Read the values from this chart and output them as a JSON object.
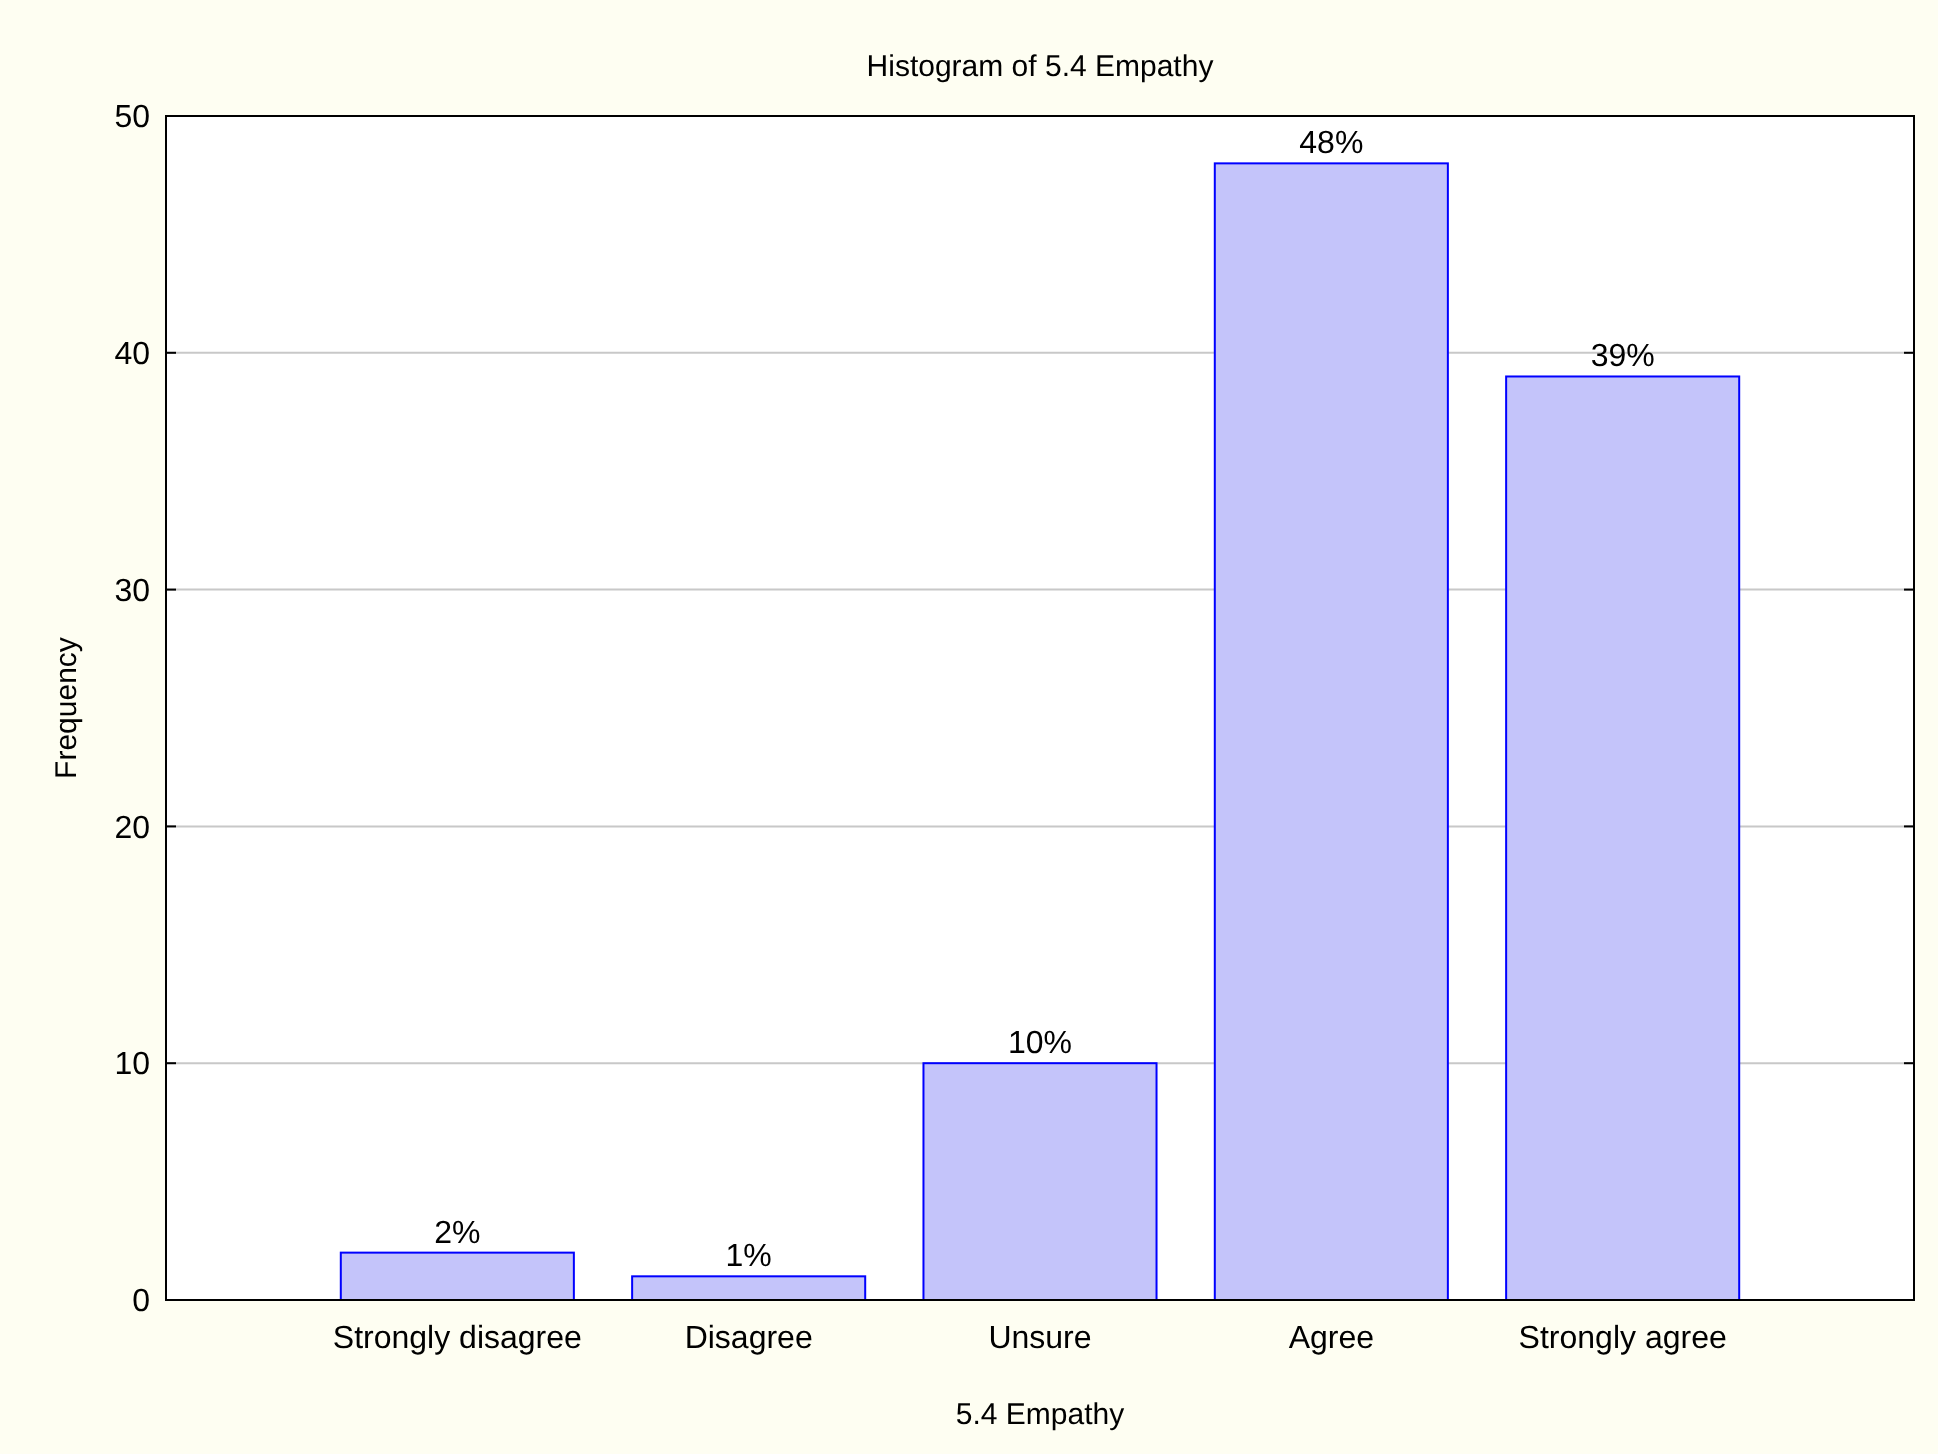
{
  "chart_data": {
    "type": "bar",
    "title": "Histogram of 5.4 Empathy",
    "xlabel": "5.4 Empathy",
    "ylabel": "Frequency",
    "categories": [
      "Strongly disagree",
      "Disagree",
      "Unsure",
      "Agree",
      "Strongly agree"
    ],
    "values": [
      2,
      1,
      10,
      48,
      39
    ],
    "value_labels": [
      "2%",
      "1%",
      "10%",
      "48%",
      "39%"
    ],
    "color": "#c4c4fa",
    "ylim": [
      0,
      50
    ],
    "yticks": [
      0,
      10,
      20,
      30,
      40,
      50
    ],
    "grid": "y"
  }
}
